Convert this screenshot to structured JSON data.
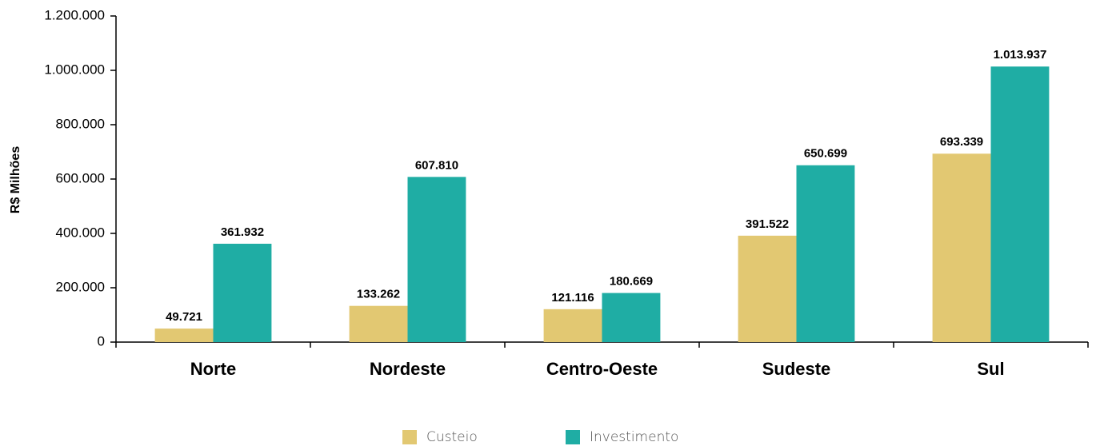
{
  "chart_data": {
    "type": "bar",
    "y_label": "R$ Milhões",
    "categories": [
      "Norte",
      "Nordeste",
      "Centro-Oeste",
      "Sudeste",
      "Sul"
    ],
    "series": [
      {
        "name": "Custeio",
        "color": "#e2c872",
        "values": [
          49721,
          133262,
          121116,
          391522,
          693339
        ],
        "value_labels": [
          "49.721",
          "133.262",
          "121.116",
          "391.522",
          "693.339"
        ]
      },
      {
        "name": "Investimento",
        "color": "#1fada4",
        "values": [
          361932,
          607810,
          180669,
          650699,
          1013937
        ],
        "value_labels": [
          "361.932",
          "607.810",
          "180.669",
          "650.699",
          "1.013.937"
        ]
      }
    ],
    "ylim": [
      0,
      1200000
    ],
    "yticks": [
      0,
      {
        "value": 200000,
        "label": "200.000"
      },
      {
        "value": 400000,
        "label": "400.000"
      },
      {
        "value": 600000,
        "label": "600.000"
      },
      {
        "value": 800000,
        "label": "800.000"
      },
      {
        "value": 1000000,
        "label": "1.000.000"
      },
      {
        "value": 1200000,
        "label": "1.200.000"
      }
    ],
    "legend": "bottom"
  }
}
